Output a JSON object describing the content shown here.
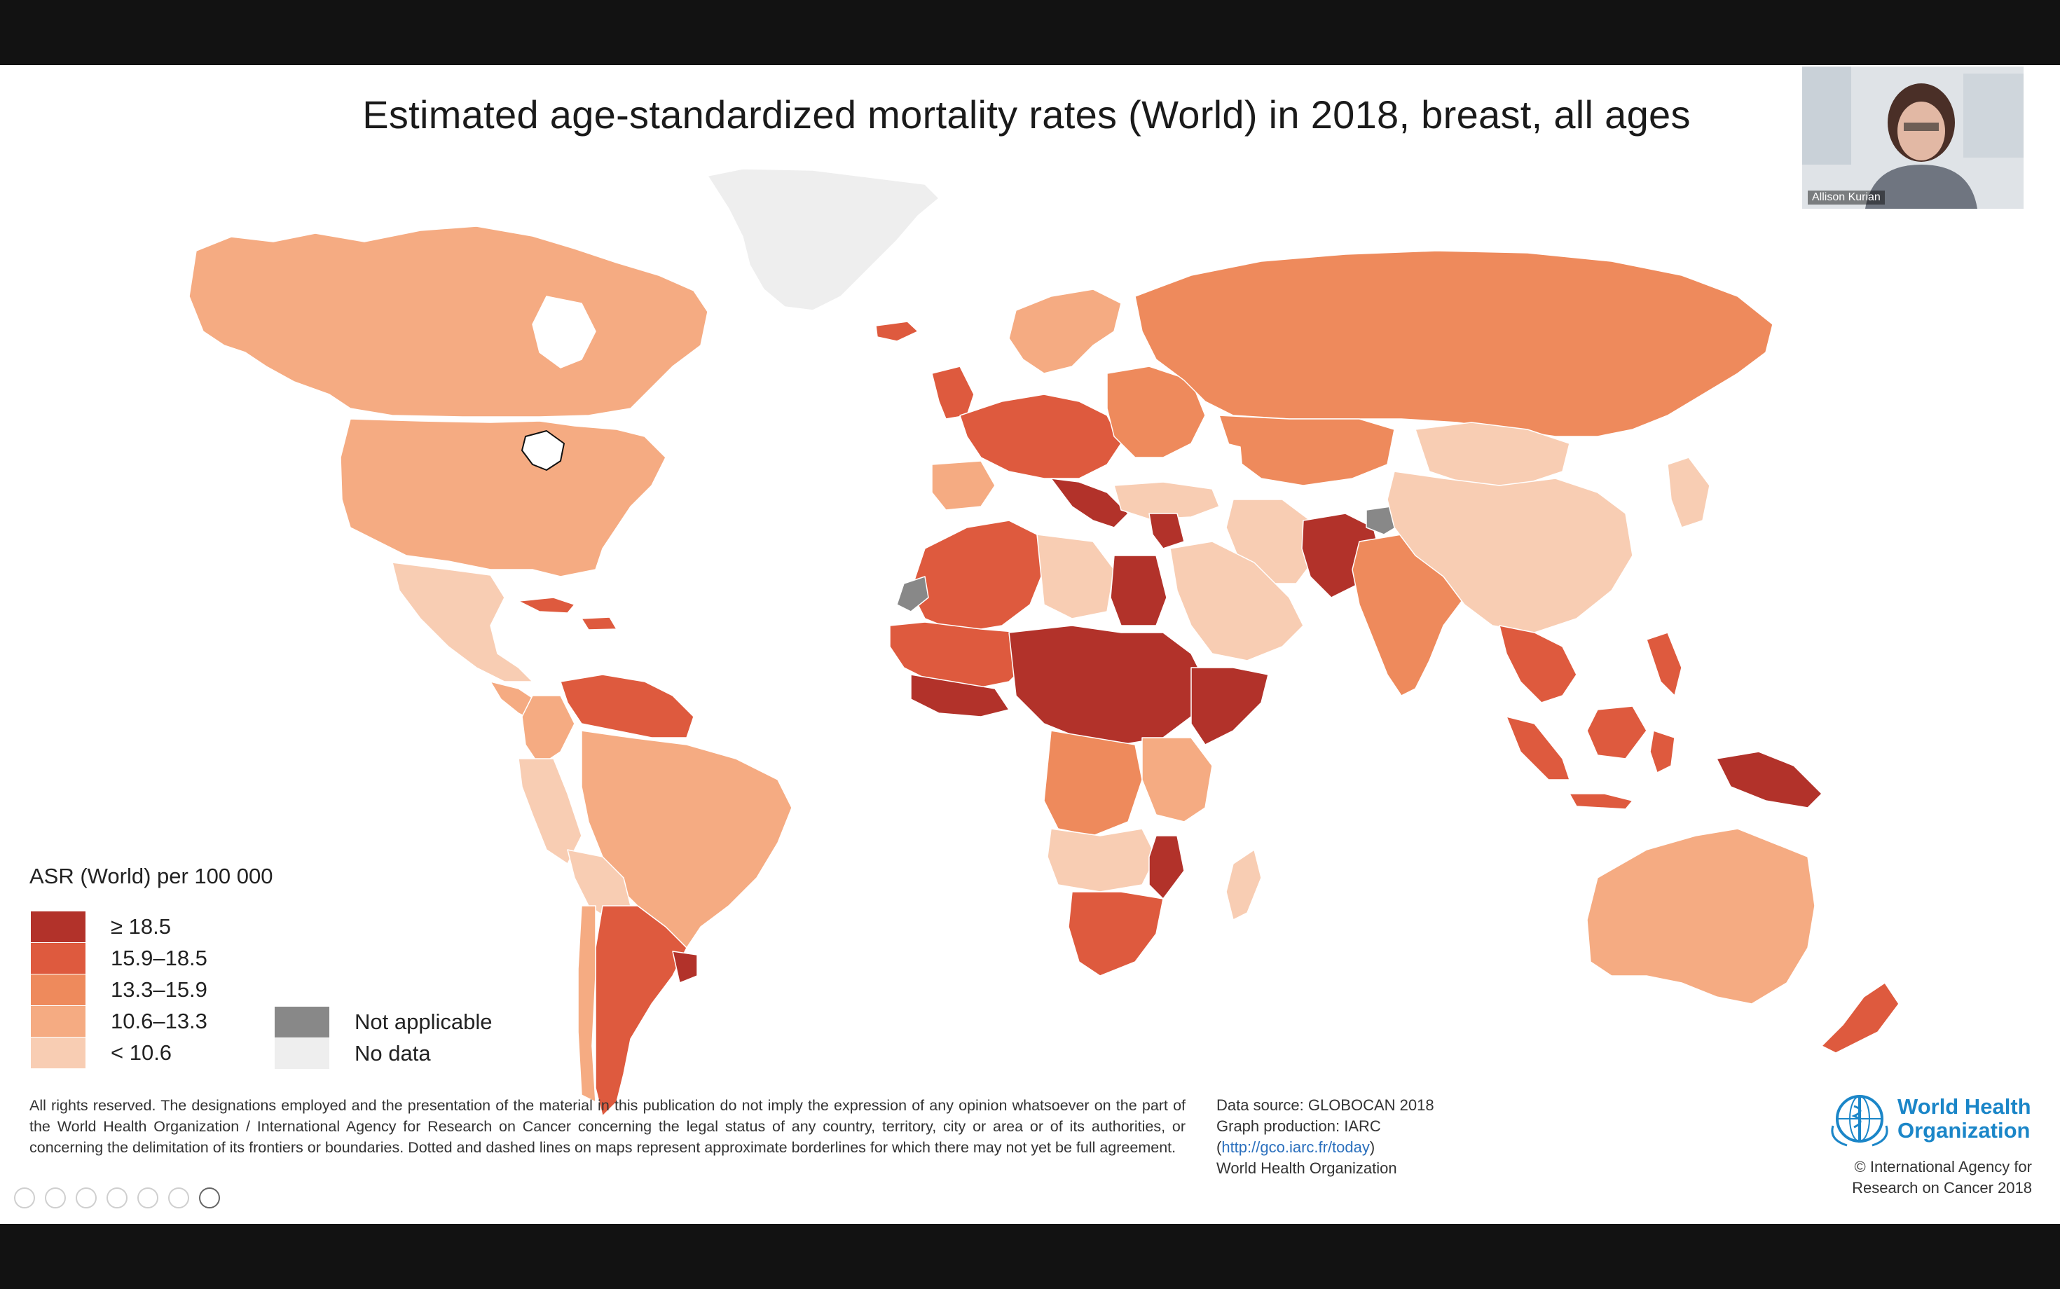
{
  "title": "Estimated age-standardized mortality rates (World) in 2018, breast, all ages",
  "legend": {
    "title": "ASR (World) per 100 000",
    "bins": [
      {
        "label": "≥ 18.5",
        "color": "#b2322a"
      },
      {
        "label": "15.9–18.5",
        "color": "#de5a3e"
      },
      {
        "label": "13.3–15.9",
        "color": "#ee8a5c"
      },
      {
        "label": "10.6–13.3",
        "color": "#f5ab82"
      },
      {
        "label": "< 10.6",
        "color": "#f8cdb3"
      }
    ],
    "special": [
      {
        "label": "Not applicable",
        "color": "#888888"
      },
      {
        "label": "No data",
        "color": "#eeeeee"
      }
    ]
  },
  "footer": {
    "disclaimer": "All rights reserved. The designations employed and the presentation of the material in this publication do not imply the expression of any opinion whatsoever on the part of the World Health Organization / International Agency for Research on Cancer concerning the legal status of any country, territory, city or area or of its authorities, or concerning the delimitation of its frontiers or boundaries. Dotted and dashed lines on maps represent approximate borderlines for which there may not yet be full agreement.",
    "source_line1": "Data source: GLOBOCAN 2018",
    "source_line2": "Graph production: IARC",
    "source_link_open": "(",
    "source_link": "http://gco.iarc.fr/today",
    "source_link_close": ")",
    "source_line4": "World Health Organization"
  },
  "who": {
    "name_line1": "World Health",
    "name_line2": "Organization",
    "copyright_line1": "© International Agency for",
    "copyright_line2": "Research on Cancer 2018"
  },
  "video": {
    "participant_name": "Allison Kurian"
  },
  "colors": {
    "bin1": "#b2322a",
    "bin2": "#de5a3e",
    "bin3": "#ee8a5c",
    "bin4": "#f5ab82",
    "bin5": "#f8cdb3",
    "not_applicable": "#888888",
    "no_data": "#eeeeee"
  }
}
